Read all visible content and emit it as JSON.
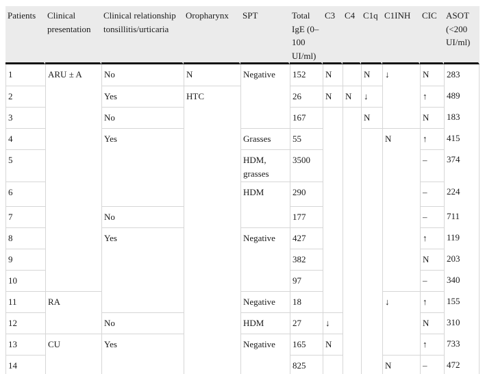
{
  "colors": {
    "header_background": "#ebebeb",
    "heavy_rule": "#141414",
    "grid_line": "#d6d6d6",
    "text": "#1a1a1a"
  },
  "table": {
    "columns": [
      {
        "id": "patients",
        "label": "Patients"
      },
      {
        "id": "clinical_presentation",
        "label": "Clinical presentation"
      },
      {
        "id": "clinical_relationship",
        "label": "Clinical relationship tonsillitis/urticaria"
      },
      {
        "id": "oropharynx",
        "label": "Oropharynx"
      },
      {
        "id": "spt",
        "label": "SPT"
      },
      {
        "id": "total_ige",
        "label": "Total IgE (0–100 UI/ml)"
      },
      {
        "id": "c3",
        "label": "C3"
      },
      {
        "id": "c4",
        "label": "C4"
      },
      {
        "id": "c1q",
        "label": "C1q"
      },
      {
        "id": "c1inh",
        "label": "C1INH"
      },
      {
        "id": "cic",
        "label": "CIC"
      },
      {
        "id": "asot",
        "label": "ASOT (<200 UI/ml)"
      }
    ],
    "rows": [
      {
        "cells": [
          {
            "c": "patients",
            "t": "1"
          },
          {
            "c": "clinical_presentation",
            "t": "ARU ± A",
            "span": 10
          },
          {
            "c": "clinical_relationship",
            "t": "No"
          },
          {
            "c": "oropharynx",
            "t": "N"
          },
          {
            "c": "spt",
            "t": "Negative",
            "span": 3
          },
          {
            "c": "total_ige",
            "t": "152"
          },
          {
            "c": "c3",
            "t": "N"
          },
          {
            "c": "c4",
            "t": ""
          },
          {
            "c": "c1q",
            "t": "N"
          },
          {
            "c": "c1inh",
            "t": "↓",
            "span": 3
          },
          {
            "c": "cic",
            "t": "N"
          },
          {
            "c": "asot",
            "t": "283"
          }
        ]
      },
      {
        "cells": [
          {
            "c": "patients",
            "t": "2"
          },
          {
            "c": "clinical_relationship",
            "t": "Yes"
          },
          {
            "c": "oropharynx",
            "t": "HTC",
            "span": 13
          },
          {
            "c": "total_ige",
            "t": "26"
          },
          {
            "c": "c3",
            "t": "N"
          },
          {
            "c": "c4",
            "t": "N"
          },
          {
            "c": "c1q",
            "t": "↓"
          },
          {
            "c": "cic",
            "t": "↑"
          },
          {
            "c": "asot",
            "t": "489"
          }
        ]
      },
      {
        "cells": [
          {
            "c": "patients",
            "t": "3"
          },
          {
            "c": "clinical_relationship",
            "t": "No"
          },
          {
            "c": "total_ige",
            "t": "167"
          },
          {
            "c": "c3",
            "t": "",
            "span": 9
          },
          {
            "c": "c4",
            "t": "",
            "span": 12
          },
          {
            "c": "c1q",
            "t": "N"
          },
          {
            "c": "cic",
            "t": "N"
          },
          {
            "c": "asot",
            "t": "183"
          }
        ]
      },
      {
        "cells": [
          {
            "c": "patients",
            "t": "4"
          },
          {
            "c": "clinical_relationship",
            "t": "Yes",
            "span": 3
          },
          {
            "c": "spt",
            "t": "Grasses"
          },
          {
            "c": "total_ige",
            "t": "55"
          },
          {
            "c": "c1q",
            "t": "",
            "span": 11
          },
          {
            "c": "c1inh",
            "t": "N",
            "span": 7
          },
          {
            "c": "cic",
            "t": "↑"
          },
          {
            "c": "asot",
            "t": "415"
          }
        ]
      },
      {
        "cells": [
          {
            "c": "patients",
            "t": "5"
          },
          {
            "c": "spt",
            "t": "HDM, grasses"
          },
          {
            "c": "total_ige",
            "t": "3500"
          },
          {
            "c": "cic",
            "t": "–"
          },
          {
            "c": "asot",
            "t": "374"
          }
        ]
      },
      {
        "cells": [
          {
            "c": "patients",
            "t": "6"
          },
          {
            "c": "spt",
            "t": "HDM",
            "span": 2
          },
          {
            "c": "total_ige",
            "t": "290"
          },
          {
            "c": "cic",
            "t": "–"
          },
          {
            "c": "asot",
            "t": "224"
          }
        ]
      },
      {
        "cells": [
          {
            "c": "patients",
            "t": "7"
          },
          {
            "c": "clinical_relationship",
            "t": "No"
          },
          {
            "c": "total_ige",
            "t": "177"
          },
          {
            "c": "cic",
            "t": "–"
          },
          {
            "c": "asot",
            "t": "711"
          }
        ]
      },
      {
        "cells": [
          {
            "c": "patients",
            "t": "8"
          },
          {
            "c": "clinical_relationship",
            "t": "Yes",
            "span": 4
          },
          {
            "c": "spt",
            "t": "Negative",
            "span": 3
          },
          {
            "c": "total_ige",
            "t": "427"
          },
          {
            "c": "cic",
            "t": "↑"
          },
          {
            "c": "asot",
            "t": "119"
          }
        ]
      },
      {
        "cells": [
          {
            "c": "patients",
            "t": "9"
          },
          {
            "c": "total_ige",
            "t": "382"
          },
          {
            "c": "cic",
            "t": "N"
          },
          {
            "c": "asot",
            "t": "203"
          }
        ]
      },
      {
        "cells": [
          {
            "c": "patients",
            "t": "10"
          },
          {
            "c": "total_ige",
            "t": "97"
          },
          {
            "c": "cic",
            "t": "–"
          },
          {
            "c": "asot",
            "t": "340"
          }
        ]
      },
      {
        "cells": [
          {
            "c": "patients",
            "t": "11"
          },
          {
            "c": "clinical_presentation",
            "t": "RA",
            "span": 2
          },
          {
            "c": "spt",
            "t": "Negative"
          },
          {
            "c": "total_ige",
            "t": "18"
          },
          {
            "c": "c1inh",
            "t": "↓",
            "span": 3
          },
          {
            "c": "cic",
            "t": "↑"
          },
          {
            "c": "asot",
            "t": "155"
          }
        ]
      },
      {
        "cells": [
          {
            "c": "patients",
            "t": "12"
          },
          {
            "c": "clinical_relationship",
            "t": "No"
          },
          {
            "c": "spt",
            "t": "HDM"
          },
          {
            "c": "total_ige",
            "t": "27"
          },
          {
            "c": "c3",
            "t": "↓"
          },
          {
            "c": "cic",
            "t": "N"
          },
          {
            "c": "asot",
            "t": "310"
          }
        ]
      },
      {
        "cells": [
          {
            "c": "patients",
            "t": "13"
          },
          {
            "c": "clinical_presentation",
            "t": "CU",
            "span": 2
          },
          {
            "c": "clinical_relationship",
            "t": "Yes",
            "span": 2
          },
          {
            "c": "spt",
            "t": "Negative",
            "span": 2
          },
          {
            "c": "total_ige",
            "t": "165"
          },
          {
            "c": "c3",
            "t": "N"
          },
          {
            "c": "cic",
            "t": "↑"
          },
          {
            "c": "asot",
            "t": "733"
          }
        ]
      },
      {
        "cells": [
          {
            "c": "patients",
            "t": "14"
          },
          {
            "c": "total_ige",
            "t": "825"
          },
          {
            "c": "c3",
            "t": ""
          },
          {
            "c": "c1inh",
            "t": "N"
          },
          {
            "c": "cic",
            "t": "–"
          },
          {
            "c": "asot",
            "t": "472"
          }
        ]
      }
    ]
  }
}
